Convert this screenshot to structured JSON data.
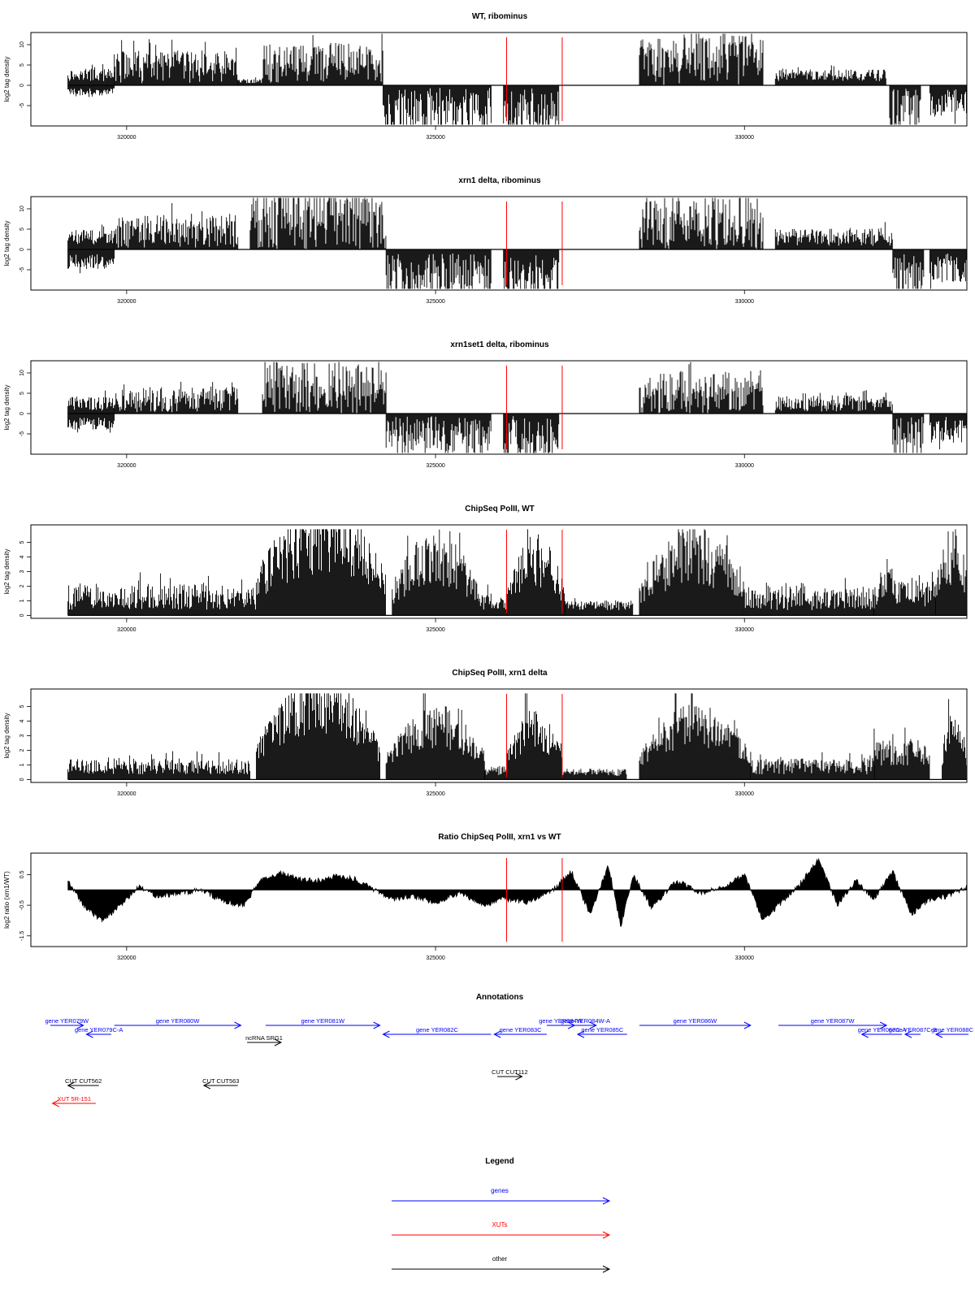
{
  "chart_data": [
    {
      "type": "bar",
      "title": "WT, ribominus",
      "ylabel": "log2 tag density",
      "ylim": [
        -10,
        13
      ],
      "yticks": [
        -5,
        0,
        5,
        10
      ],
      "xlim": [
        318450,
        333600
      ],
      "xticks": [
        320000,
        325000,
        330000
      ],
      "marker_lines": [
        326150,
        327050
      ],
      "segments": [
        {
          "x": [
            319050,
            319800
          ],
          "amp": 2.5,
          "sign": 1,
          "noise": 0.6
        },
        {
          "x": [
            319050,
            319800
          ],
          "amp": 1.5,
          "sign": -1,
          "noise": 0.5
        },
        {
          "x": [
            319800,
            321800
          ],
          "amp": 4.5,
          "sign": 1,
          "noise": 0.9
        },
        {
          "x": [
            321800,
            322200
          ],
          "amp": 1.0,
          "sign": 1,
          "noise": 0.5
        },
        {
          "x": [
            322200,
            324150
          ],
          "amp": 5.5,
          "sign": 1,
          "noise": 0.9
        },
        {
          "x": [
            324150,
            325900
          ],
          "amp": -6.0,
          "sign": -1,
          "noise": 0.9
        },
        {
          "x": [
            326100,
            327000
          ],
          "amp": -6.5,
          "sign": -1,
          "noise": 0.9
        },
        {
          "x": [
            328300,
            330300
          ],
          "amp": 6.5,
          "sign": 1,
          "noise": 1.0
        },
        {
          "x": [
            330500,
            332300
          ],
          "amp": 2.5,
          "sign": 1,
          "noise": 0.6
        },
        {
          "x": [
            332350,
            332850
          ],
          "amp": -6.0,
          "sign": -1,
          "noise": 0.9
        },
        {
          "x": [
            333000,
            333600
          ],
          "amp": -4.5,
          "sign": -1,
          "noise": 0.8
        }
      ]
    },
    {
      "type": "bar",
      "title": "xrn1 delta, ribominus",
      "ylabel": "log2 tag density",
      "ylim": [
        -10,
        13
      ],
      "yticks": [
        -5,
        0,
        5,
        10
      ],
      "xlim": [
        318450,
        333600
      ],
      "xticks": [
        320000,
        325000,
        330000
      ],
      "marker_lines": [
        326150,
        327050
      ],
      "segments": [
        {
          "x": [
            319050,
            319800
          ],
          "amp": 3.0,
          "sign": 1,
          "noise": 0.6
        },
        {
          "x": [
            319050,
            319800
          ],
          "amp": -3.0,
          "sign": -1,
          "noise": 0.6
        },
        {
          "x": [
            319800,
            321800
          ],
          "amp": 4.5,
          "sign": 1,
          "noise": 0.9
        },
        {
          "x": [
            322000,
            324200
          ],
          "amp": 7.5,
          "sign": 1,
          "noise": 1.0
        },
        {
          "x": [
            324200,
            325900
          ],
          "amp": -6.5,
          "sign": -1,
          "noise": 0.9
        },
        {
          "x": [
            326100,
            327000
          ],
          "amp": -6.5,
          "sign": -1,
          "noise": 0.8
        },
        {
          "x": [
            328300,
            330300
          ],
          "amp": 6.5,
          "sign": 1,
          "noise": 1.0
        },
        {
          "x": [
            330500,
            332400
          ],
          "amp": 3.0,
          "sign": 1,
          "noise": 0.7
        },
        {
          "x": [
            332400,
            332900
          ],
          "amp": -6.5,
          "sign": -1,
          "noise": 0.9
        },
        {
          "x": [
            333000,
            333600
          ],
          "amp": -4.5,
          "sign": -1,
          "noise": 0.8
        }
      ]
    },
    {
      "type": "bar",
      "title": "xrn1set1 delta, ribominus",
      "ylabel": "log2 tag density",
      "ylim": [
        -10,
        13
      ],
      "yticks": [
        -5,
        0,
        5,
        10
      ],
      "xlim": [
        318450,
        333600
      ],
      "xticks": [
        320000,
        325000,
        330000
      ],
      "marker_lines": [
        326150,
        327050
      ],
      "segments": [
        {
          "x": [
            319050,
            319800
          ],
          "amp": 2.5,
          "sign": 1,
          "noise": 0.7
        },
        {
          "x": [
            319050,
            319800
          ],
          "amp": -2.5,
          "sign": -1,
          "noise": 0.6
        },
        {
          "x": [
            319800,
            321800
          ],
          "amp": 3.5,
          "sign": 1,
          "noise": 0.9
        },
        {
          "x": [
            322200,
            324200
          ],
          "amp": 6.5,
          "sign": 1,
          "noise": 1.0
        },
        {
          "x": [
            324200,
            325900
          ],
          "amp": -5.5,
          "sign": -1,
          "noise": 0.9
        },
        {
          "x": [
            326100,
            327000
          ],
          "amp": -6.0,
          "sign": -1,
          "noise": 0.9
        },
        {
          "x": [
            328300,
            330300
          ],
          "amp": 5.5,
          "sign": 1,
          "noise": 1.0
        },
        {
          "x": [
            330500,
            332400
          ],
          "amp": 2.5,
          "sign": 1,
          "noise": 0.8
        },
        {
          "x": [
            332400,
            332900
          ],
          "amp": -5.5,
          "sign": -1,
          "noise": 0.9
        },
        {
          "x": [
            333000,
            333600
          ],
          "amp": -4.0,
          "sign": -1,
          "noise": 0.8
        }
      ]
    },
    {
      "type": "bar",
      "title": "ChipSeq PolII, WT",
      "ylabel": "log2 tag density",
      "ylim": [
        -0.2,
        6.2
      ],
      "yticks": [
        0,
        1,
        2,
        3,
        4,
        5
      ],
      "xlim": [
        318450,
        333600
      ],
      "xticks": [
        320000,
        325000,
        330000
      ],
      "marker_lines": [
        326150,
        327050
      ],
      "segments": [
        {
          "x": [
            319050,
            322100
          ],
          "amp": 1.3,
          "sign": 1,
          "noise": 0.7
        },
        {
          "x": [
            322100,
            324200
          ],
          "amp": 4.5,
          "sign": 1,
          "noise": 0.5,
          "dome": true
        },
        {
          "x": [
            324300,
            325700
          ],
          "amp": 3.3,
          "sign": 1,
          "noise": 0.5,
          "dome": true
        },
        {
          "x": [
            325700,
            326150
          ],
          "amp": 1.0,
          "sign": 1,
          "noise": 0.6
        },
        {
          "x": [
            326150,
            327100
          ],
          "amp": 3.1,
          "sign": 1,
          "noise": 0.5,
          "dome": true
        },
        {
          "x": [
            327100,
            328200
          ],
          "amp": 0.7,
          "sign": 1,
          "noise": 0.5
        },
        {
          "x": [
            328300,
            330000
          ],
          "amp": 3.4,
          "sign": 1,
          "noise": 0.5,
          "dome": true
        },
        {
          "x": [
            330000,
            332100
          ],
          "amp": 1.2,
          "sign": 1,
          "noise": 0.7
        },
        {
          "x": [
            332100,
            332500
          ],
          "amp": 2.0,
          "sign": 1,
          "noise": 0.5,
          "dome": true
        },
        {
          "x": [
            332500,
            333100
          ],
          "amp": 1.5,
          "sign": 1,
          "noise": 0.6
        },
        {
          "x": [
            333100,
            333600
          ],
          "amp": 3.3,
          "sign": 1,
          "noise": 0.5,
          "dome": true
        }
      ]
    },
    {
      "type": "bar",
      "title": "ChipSeq PolII, xrn1 delta",
      "ylabel": "log2 tag density",
      "ylim": [
        -0.2,
        6.2
      ],
      "yticks": [
        0,
        1,
        2,
        3,
        4,
        5
      ],
      "xlim": [
        318450,
        333600
      ],
      "xticks": [
        320000,
        325000,
        330000
      ],
      "marker_lines": [
        326150,
        327050
      ],
      "segments": [
        {
          "x": [
            319050,
            322000
          ],
          "amp": 0.9,
          "sign": 1,
          "noise": 0.6
        },
        {
          "x": [
            322100,
            324100
          ],
          "amp": 4.3,
          "sign": 1,
          "noise": 0.4,
          "dome": true
        },
        {
          "x": [
            324200,
            325800
          ],
          "amp": 3.0,
          "sign": 1,
          "noise": 0.4,
          "dome": true
        },
        {
          "x": [
            325800,
            326150
          ],
          "amp": 0.6,
          "sign": 1,
          "noise": 0.5
        },
        {
          "x": [
            326150,
            327050
          ],
          "amp": 2.9,
          "sign": 1,
          "noise": 0.4,
          "dome": true
        },
        {
          "x": [
            327050,
            328100
          ],
          "amp": 0.5,
          "sign": 1,
          "noise": 0.5
        },
        {
          "x": [
            328300,
            330100
          ],
          "amp": 3.1,
          "sign": 1,
          "noise": 0.4,
          "dome": true
        },
        {
          "x": [
            330100,
            332100
          ],
          "amp": 0.9,
          "sign": 1,
          "noise": 0.6
        },
        {
          "x": [
            332100,
            333000
          ],
          "amp": 1.8,
          "sign": 1,
          "noise": 0.5
        },
        {
          "x": [
            333200,
            333600
          ],
          "amp": 3.0,
          "sign": 1,
          "noise": 0.4,
          "dome": true
        }
      ]
    },
    {
      "type": "area",
      "title": "Ratio ChipSeq PolII, xrn1 vs WT",
      "ylabel": "log2 ratio (xrn1/WT)",
      "ylim": [
        -1.85,
        1.2
      ],
      "yticks": [
        -1.5,
        -0.5,
        0.5
      ],
      "xlim": [
        318450,
        333600
      ],
      "xticks": [
        320000,
        325000,
        330000
      ],
      "marker_lines": [
        326150,
        327050
      ],
      "profile_x": [
        319050,
        319300,
        319600,
        319850,
        320200,
        320500,
        320900,
        321200,
        321600,
        321900,
        322200,
        322500,
        322800,
        323100,
        323400,
        323700,
        324000,
        324300,
        324600,
        325000,
        325400,
        325800,
        326100,
        326500,
        326900,
        327200,
        327500,
        327800,
        328000,
        328200,
        328500,
        328900,
        329300,
        329700,
        330000,
        330300,
        330600,
        330900,
        331200,
        331500,
        331800,
        332100,
        332400,
        332700,
        333000,
        333300,
        333600
      ],
      "profile_y": [
        0.3,
        -0.5,
        -1.0,
        -0.6,
        0.1,
        -0.2,
        -0.1,
        0.0,
        -0.4,
        -0.5,
        0.4,
        0.55,
        0.35,
        0.3,
        0.45,
        0.35,
        0.0,
        -0.3,
        -0.2,
        -0.4,
        -0.1,
        -0.5,
        -0.3,
        -0.4,
        0.0,
        0.6,
        -0.8,
        0.8,
        -1.2,
        0.5,
        -0.6,
        0.3,
        -0.1,
        0.1,
        0.5,
        -1.0,
        -0.4,
        0.2,
        1.0,
        -0.5,
        0.3,
        -0.3,
        0.6,
        -0.8,
        -0.3,
        -0.2,
        0.1
      ]
    }
  ],
  "annotations": {
    "title": "Annotations",
    "features": [
      {
        "label": "gene YER079W",
        "kind": "gene",
        "dir": 1,
        "x": [
          318600,
          319300
        ],
        "row": 0
      },
      {
        "label": "gene YER079C-A",
        "kind": "gene",
        "dir": -1,
        "x": [
          319350,
          319750
        ],
        "row": 1
      },
      {
        "label": "gene YER080W",
        "kind": "gene",
        "dir": 1,
        "x": [
          319800,
          321850
        ],
        "row": 0
      },
      {
        "label": "ncRNA SRG1",
        "kind": "other",
        "dir": 1,
        "x": [
          321950,
          322500
        ],
        "row": 2
      },
      {
        "label": "gene YER081W",
        "kind": "gene",
        "dir": 1,
        "x": [
          322250,
          324100
        ],
        "row": 0
      },
      {
        "label": "gene YER082C",
        "kind": "gene",
        "dir": -1,
        "x": [
          324150,
          325900
        ],
        "row": 1
      },
      {
        "label": "gene YER083C",
        "kind": "gene",
        "dir": -1,
        "x": [
          325950,
          326800
        ],
        "row": 1
      },
      {
        "label": "gene YER084W",
        "kind": "gene",
        "dir": 1,
        "x": [
          326800,
          327250
        ],
        "row": 0
      },
      {
        "label": "gene YER084W-A",
        "kind": "gene",
        "dir": 1,
        "x": [
          327250,
          327600
        ],
        "row": 0
      },
      {
        "label": "gene YER085C",
        "kind": "gene",
        "dir": -1,
        "x": [
          327300,
          328100
        ],
        "row": 1
      },
      {
        "label": "gene YER086W",
        "kind": "gene",
        "dir": 1,
        "x": [
          328300,
          330100
        ],
        "row": 0
      },
      {
        "label": "gene YER087W",
        "kind": "gene",
        "dir": 1,
        "x": [
          330550,
          332300
        ],
        "row": 0
      },
      {
        "label": "gene YER087C-A",
        "kind": "gene",
        "dir": -1,
        "x": [
          331900,
          332550
        ],
        "row": 1
      },
      {
        "label": "gene YER087C-B",
        "kind": "gene",
        "dir": -1,
        "x": [
          332600,
          332850
        ],
        "row": 1
      },
      {
        "label": "gene YER088C",
        "kind": "gene",
        "dir": -1,
        "x": [
          333100,
          334700
        ],
        "row": 1
      },
      {
        "label": "CUT CUT562",
        "kind": "other",
        "dir": -1,
        "x": [
          319050,
          319550
        ],
        "row": 4
      },
      {
        "label": "CUT CUT563",
        "kind": "other",
        "dir": -1,
        "x": [
          321250,
          321800
        ],
        "row": 4
      },
      {
        "label": "CUT CUT112",
        "kind": "other",
        "dir": 1,
        "x": [
          326000,
          326400
        ],
        "row": 3
      },
      {
        "label": "XUT 5R-151",
        "kind": "xut",
        "dir": -1,
        "x": [
          318800,
          319500
        ],
        "row": 5
      }
    ]
  },
  "legend": {
    "title": "Legend",
    "items": [
      {
        "label": "genes",
        "color": "#0000ff"
      },
      {
        "label": "XUTs",
        "color": "#ff0000"
      },
      {
        "label": "other",
        "color": "#000000"
      }
    ]
  },
  "colors": {
    "gene": "#0000ff",
    "xut": "#ff0000",
    "other": "#000000",
    "marker": "#ff0000",
    "bars": "#000000"
  }
}
